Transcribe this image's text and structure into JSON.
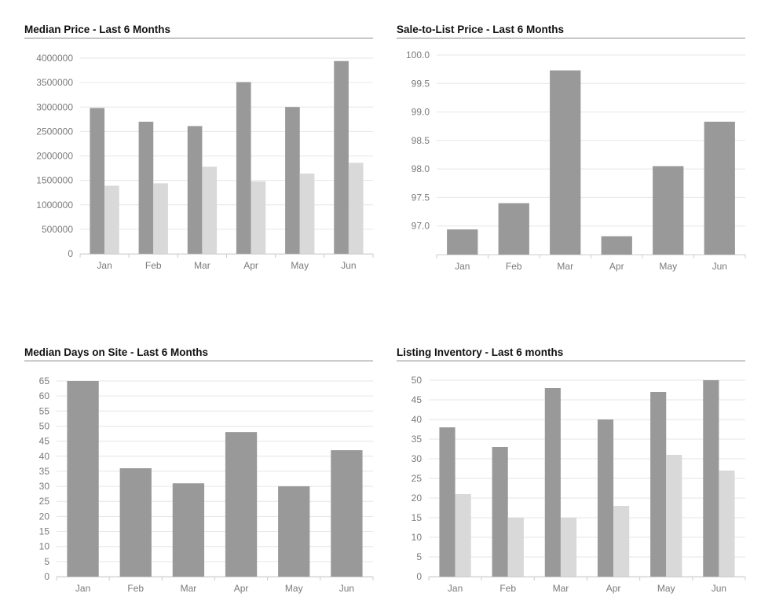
{
  "colors": {
    "primary": "#999999",
    "secondary": "#d9d9d9",
    "grid": "#e6e6e6",
    "axis": "#cccccc"
  },
  "chart_data": [
    {
      "type": "bar",
      "title": "Median Price - Last 6 Months",
      "categories": [
        "Jan",
        "Feb",
        "Mar",
        "Apr",
        "May",
        "Jun"
      ],
      "series": [
        {
          "values": [
            2980000,
            2700000,
            2610000,
            3510000,
            3000000,
            3940000
          ]
        },
        {
          "values": [
            1390000,
            1440000,
            1780000,
            1480000,
            1640000,
            1860000
          ]
        }
      ],
      "ylim": [
        0,
        4000000
      ],
      "yticks": [
        0,
        500000,
        1000000,
        1500000,
        2000000,
        2500000,
        3000000,
        3500000,
        4000000
      ],
      "ytick_labels": [
        "0",
        "500000",
        "1000000",
        "1500000",
        "2000000",
        "2500000",
        "3000000",
        "3500000",
        "4000000"
      ],
      "grid": true,
      "xlabel": "",
      "ylabel": ""
    },
    {
      "type": "bar",
      "title": "Sale-to-List Price - Last 6 Months",
      "categories": [
        "Jan",
        "Feb",
        "Mar",
        "Apr",
        "May",
        "Jun"
      ],
      "series": [
        {
          "values": [
            96.94,
            97.4,
            99.73,
            96.82,
            98.05,
            98.83
          ]
        }
      ],
      "ylim": [
        96.5,
        100.0
      ],
      "yticks": [
        97.0,
        97.5,
        98.0,
        98.5,
        99.0,
        99.5,
        100.0
      ],
      "ytick_labels": [
        "97.0",
        "97.5",
        "98.0",
        "98.5",
        "99.0",
        "99.5",
        "100.0"
      ],
      "grid": true,
      "xlabel": "",
      "ylabel": ""
    },
    {
      "type": "bar",
      "title": "Median Days on Site - Last 6 Months",
      "categories": [
        "Jan",
        "Feb",
        "Mar",
        "Apr",
        "May",
        "Jun"
      ],
      "series": [
        {
          "values": [
            65,
            36,
            31,
            48,
            30,
            42
          ]
        }
      ],
      "ylim": [
        0,
        65
      ],
      "yticks": [
        0,
        5,
        10,
        15,
        20,
        25,
        30,
        35,
        40,
        45,
        50,
        55,
        60,
        65
      ],
      "ytick_labels": [
        "0",
        "5",
        "10",
        "15",
        "20",
        "25",
        "30",
        "35",
        "40",
        "45",
        "50",
        "55",
        "60",
        "65"
      ],
      "grid": true,
      "xlabel": "",
      "ylabel": ""
    },
    {
      "type": "bar",
      "title": "Listing Inventory - Last 6 months",
      "categories": [
        "Jan",
        "Feb",
        "Mar",
        "Apr",
        "May",
        "Jun"
      ],
      "series": [
        {
          "values": [
            38,
            33,
            48,
            40,
            47,
            50
          ]
        },
        {
          "values": [
            21,
            15,
            15,
            18,
            31,
            27
          ]
        }
      ],
      "ylim": [
        0,
        50
      ],
      "yticks": [
        0,
        5,
        10,
        15,
        20,
        25,
        30,
        35,
        40,
        45,
        50
      ],
      "ytick_labels": [
        "0",
        "5",
        "10",
        "15",
        "20",
        "25",
        "30",
        "35",
        "40",
        "45",
        "50"
      ],
      "grid": true,
      "xlabel": "",
      "ylabel": ""
    }
  ]
}
